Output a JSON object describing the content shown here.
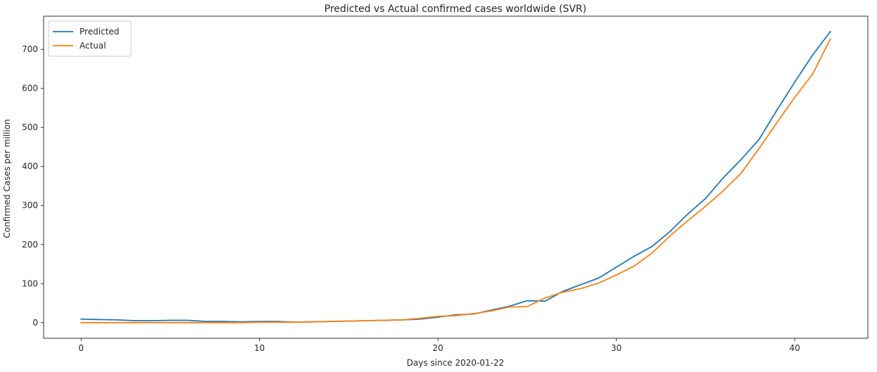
{
  "chart_data": {
    "type": "line",
    "title": "Predicted vs Actual confirmed cases worldwide (SVR)",
    "xlabel": "Days since 2020-01-22",
    "ylabel": "Confirmed Cases per million",
    "xlim": [
      -2.1,
      44.1
    ],
    "ylim": [
      -40,
      785
    ],
    "xticks": [
      0,
      10,
      20,
      30,
      40
    ],
    "yticks": [
      0,
      100,
      200,
      300,
      400,
      500,
      600,
      700
    ],
    "grid": false,
    "legend_position": "upper left",
    "x": [
      0,
      1,
      2,
      3,
      4,
      5,
      6,
      7,
      8,
      9,
      10,
      11,
      12,
      13,
      14,
      15,
      16,
      17,
      18,
      19,
      20,
      21,
      22,
      23,
      24,
      25,
      26,
      27,
      28,
      29,
      30,
      31,
      32,
      33,
      34,
      35,
      36,
      37,
      38,
      39,
      40,
      41,
      42
    ],
    "series": [
      {
        "name": "Predicted",
        "color": "#1f77b4",
        "values": [
          9,
          8,
          7,
          5,
          5,
          6,
          6,
          3,
          3,
          2,
          3,
          3,
          1,
          2,
          3,
          4,
          5,
          6,
          7,
          9,
          14,
          20,
          22,
          32,
          42,
          56,
          55,
          80,
          97,
          114,
          142,
          170,
          195,
          233,
          278,
          318,
          371,
          418,
          469,
          544,
          616,
          685,
          746
        ]
      },
      {
        "name": "Actual",
        "color": "#ff7f0e",
        "values": [
          0,
          0,
          0,
          0,
          0,
          0,
          0,
          0,
          0,
          0,
          1,
          1,
          1,
          2,
          3,
          4,
          5,
          6,
          7,
          11,
          16,
          18,
          23,
          30,
          40,
          41,
          63,
          78,
          87,
          101,
          122,
          145,
          178,
          222,
          261,
          298,
          338,
          383,
          446,
          512,
          577,
          636,
          727
        ]
      }
    ]
  }
}
